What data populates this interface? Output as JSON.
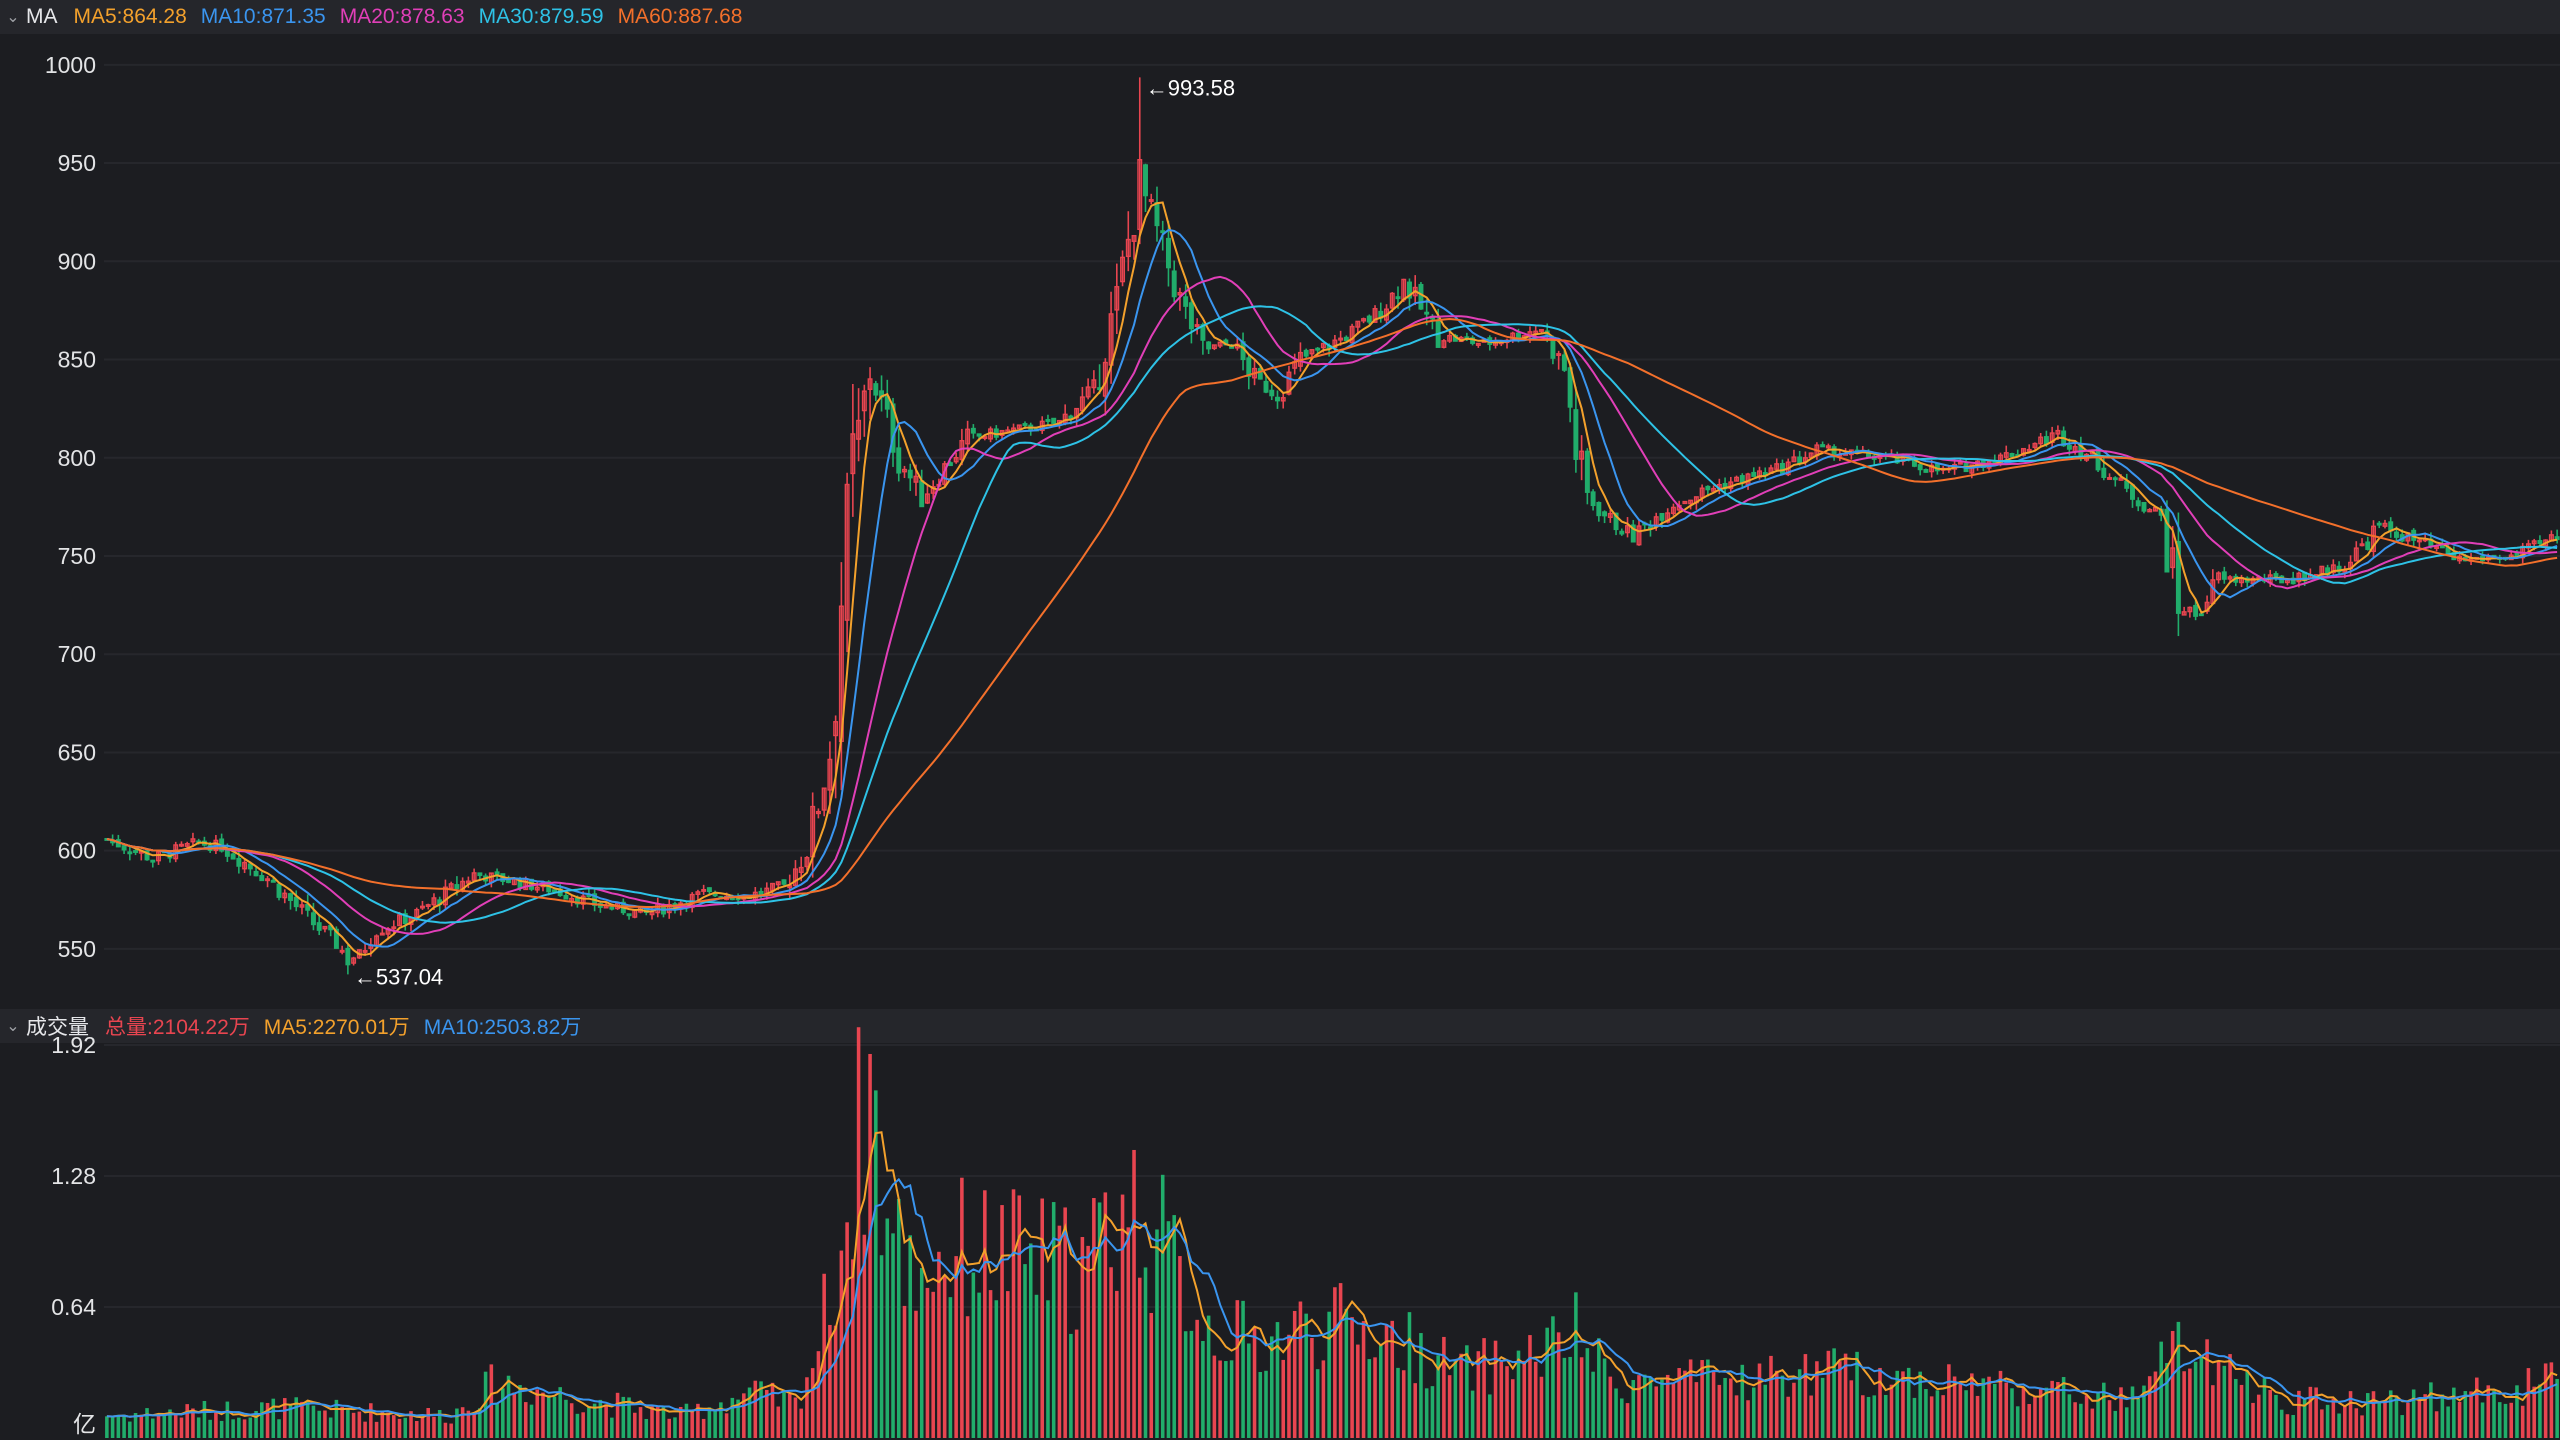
{
  "colors": {
    "up": "#e84550",
    "down": "#21ad6b",
    "grid": "#26272c",
    "bg": "#1c1d21"
  },
  "legend": {
    "title": "MA",
    "items": [
      {
        "text": "MA5:864.28",
        "color": "#f3a12c"
      },
      {
        "text": "MA10:871.35",
        "color": "#3a95ef"
      },
      {
        "text": "MA20:878.63",
        "color": "#e13fb8"
      },
      {
        "text": "MA30:879.59",
        "color": "#2ec2e6"
      },
      {
        "text": "MA60:887.68",
        "color": "#f3702b"
      }
    ]
  },
  "volume_legend": {
    "title": "成交量",
    "items": [
      {
        "text": "总量:2104.22万",
        "color": "#e84550"
      },
      {
        "text": "MA5:2270.01万",
        "color": "#f3a12c"
      },
      {
        "text": "MA10:2503.82万",
        "color": "#3a95ef"
      }
    ]
  },
  "chart_data": [
    {
      "type": "candlestick",
      "yticks": [
        1000,
        950,
        900,
        850,
        800,
        750,
        700,
        650,
        600,
        550
      ],
      "ylim": [
        524,
        1005
      ],
      "grid": true,
      "annotations": {
        "max": "←993.58",
        "min": "←537.04",
        "max_value": 993.58,
        "min_value": 537.04
      },
      "price_anchors": [
        [
          0,
          606
        ],
        [
          8,
          596
        ],
        [
          16,
          604
        ],
        [
          20,
          602
        ],
        [
          28,
          586
        ],
        [
          36,
          563
        ],
        [
          40,
          553
        ],
        [
          42,
          545
        ],
        [
          44,
          547
        ],
        [
          46,
          558
        ],
        [
          54,
          568
        ],
        [
          60,
          580
        ],
        [
          64,
          588
        ],
        [
          70,
          585
        ],
        [
          78,
          580
        ],
        [
          86,
          572
        ],
        [
          94,
          568
        ],
        [
          104,
          578
        ],
        [
          112,
          577
        ],
        [
          118,
          582
        ],
        [
          122,
          600
        ],
        [
          126,
          650
        ],
        [
          128,
          730
        ],
        [
          130,
          795
        ],
        [
          133,
          845
        ],
        [
          138,
          800
        ],
        [
          142,
          780
        ],
        [
          150,
          810
        ],
        [
          160,
          815
        ],
        [
          166,
          818
        ],
        [
          172,
          835
        ],
        [
          176,
          880
        ],
        [
          180,
          940
        ],
        [
          183,
          915
        ],
        [
          187,
          880
        ],
        [
          191,
          855
        ],
        [
          196,
          858
        ],
        [
          200,
          840
        ],
        [
          204,
          832
        ],
        [
          208,
          850
        ],
        [
          216,
          862
        ],
        [
          222,
          875
        ],
        [
          226,
          890
        ],
        [
          232,
          862
        ],
        [
          240,
          858
        ],
        [
          250,
          866
        ],
        [
          254,
          845
        ],
        [
          256,
          805
        ],
        [
          258,
          780
        ],
        [
          262,
          768
        ],
        [
          266,
          760
        ],
        [
          272,
          775
        ],
        [
          280,
          785
        ],
        [
          286,
          790
        ],
        [
          292,
          795
        ],
        [
          298,
          804
        ],
        [
          310,
          800
        ],
        [
          320,
          793
        ],
        [
          330,
          800
        ],
        [
          340,
          812
        ],
        [
          346,
          800
        ],
        [
          352,
          783
        ],
        [
          358,
          770
        ],
        [
          361,
          725
        ],
        [
          364,
          720
        ],
        [
          368,
          738
        ],
        [
          380,
          738
        ],
        [
          390,
          745
        ],
        [
          396,
          765
        ],
        [
          402,
          758
        ],
        [
          410,
          748
        ],
        [
          420,
          750
        ],
        [
          427,
          760
        ]
      ],
      "volume_yticks": [
        "1.92",
        "1.28",
        "0.64"
      ],
      "volume_unit": "亿",
      "volume_ylim": [
        0,
        1.92
      ],
      "volume_anchors": [
        [
          0,
          0.12
        ],
        [
          30,
          0.16
        ],
        [
          60,
          0.12
        ],
        [
          68,
          0.3
        ],
        [
          80,
          0.22
        ],
        [
          100,
          0.12
        ],
        [
          112,
          0.24
        ],
        [
          120,
          0.18
        ],
        [
          124,
          0.5
        ],
        [
          128,
          1.05
        ],
        [
          130,
          1.4
        ],
        [
          133,
          1.92
        ],
        [
          136,
          1.1
        ],
        [
          140,
          0.9
        ],
        [
          150,
          1.0
        ],
        [
          160,
          0.95
        ],
        [
          170,
          0.9
        ],
        [
          178,
          1.25
        ],
        [
          182,
          1.1
        ],
        [
          186,
          0.9
        ],
        [
          192,
          0.6
        ],
        [
          200,
          0.5
        ],
        [
          210,
          0.6
        ],
        [
          220,
          0.58
        ],
        [
          226,
          0.5
        ],
        [
          236,
          0.35
        ],
        [
          250,
          0.45
        ],
        [
          256,
          0.55
        ],
        [
          262,
          0.3
        ],
        [
          280,
          0.3
        ],
        [
          300,
          0.35
        ],
        [
          330,
          0.28
        ],
        [
          352,
          0.2
        ],
        [
          356,
          0.25
        ],
        [
          360,
          0.55
        ],
        [
          364,
          0.4
        ],
        [
          380,
          0.2
        ],
        [
          400,
          0.2
        ],
        [
          420,
          0.26
        ],
        [
          427,
          0.3
        ]
      ]
    }
  ]
}
